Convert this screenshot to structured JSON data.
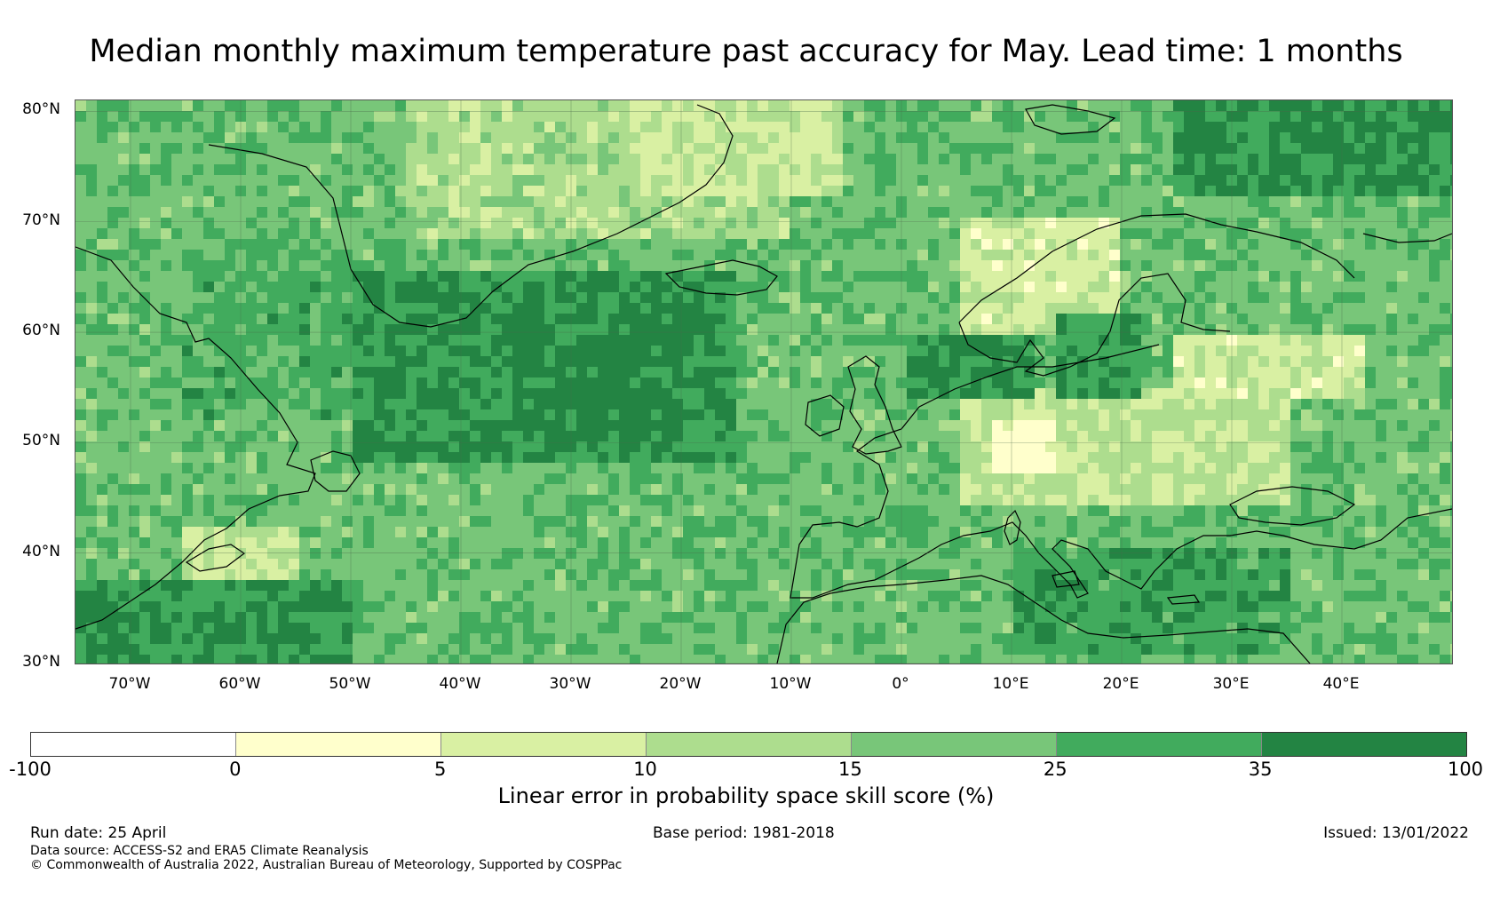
{
  "title": "Median monthly maximum temperature past accuracy for May. Lead time: 1 months",
  "map": {
    "projection": "plate-carree",
    "lon_range": [
      -75,
      50
    ],
    "lat_range": [
      30,
      81
    ],
    "lat_labels": [
      "80°N",
      "70°N",
      "60°N",
      "50°N",
      "40°N",
      "30°N"
    ],
    "lat_values": [
      80,
      70,
      60,
      50,
      40,
      30
    ],
    "lon_labels": [
      "70°W",
      "60°W",
      "50°W",
      "40°W",
      "30°W",
      "20°W",
      "10°W",
      "0°",
      "10°E",
      "20°E",
      "30°E",
      "40°E"
    ],
    "lon_values": [
      -70,
      -60,
      -50,
      -40,
      -30,
      -20,
      -10,
      0,
      10,
      20,
      30,
      40
    ],
    "gridlines": true,
    "field": "Linear error in probability space skill score",
    "regions_dominant_class": {
      "open_north_atlantic": "25-35 / 35-100",
      "greenland_sea": "5-15",
      "central_europe": "0-10",
      "scandinavia_north": "0-5",
      "mediterranean": "25-35",
      "barents_sea": "35-100"
    }
  },
  "colorbar": {
    "boundaries": [
      "-100",
      "0",
      "5",
      "10",
      "15",
      "25",
      "35",
      "100"
    ],
    "colors": [
      "#ffffff",
      "#ffffcc",
      "#d9f0a3",
      "#addd8e",
      "#78c679",
      "#41ab5d",
      "#238443"
    ],
    "label": "Linear error in probability space skill score (%)"
  },
  "footer": {
    "run_date": "Run date: 25 April",
    "base_period": "Base period: 1981-2018",
    "issued": "Issued: 13/01/2022",
    "data_source": "Data source: ACCESS-S2 and ERA5 Climate Reanalysis",
    "copyright": "© Commonwealth of Australia 2022, Australian Bureau of Meteorology, Supported by COSPPac"
  }
}
